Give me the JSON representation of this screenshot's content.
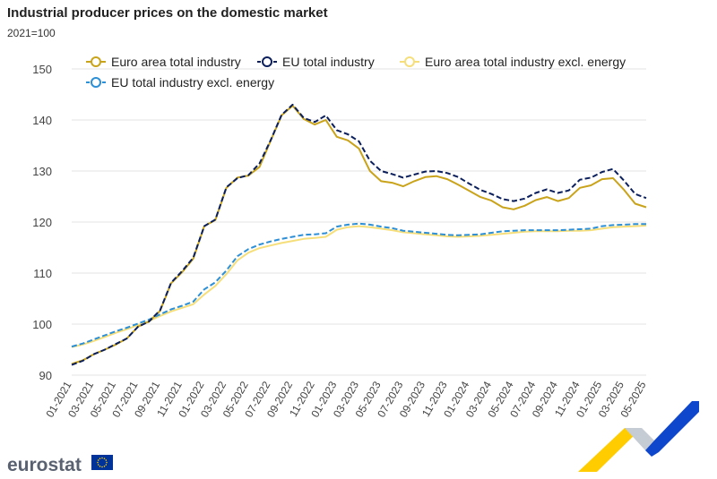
{
  "header": {
    "title": "Industrial producer prices on the domestic market",
    "subtitle": "2021=100"
  },
  "branding": {
    "logo_text": "eurostat",
    "flag_color": "#003399",
    "star_color": "#ffcc00",
    "shape_colors": [
      "#ffcc00",
      "#c6ccd3",
      "#0e47cb"
    ]
  },
  "chart_data": {
    "type": "line",
    "title": "Industrial producer prices on the domestic market",
    "subtitle": "2021=100",
    "xlabel": "",
    "ylabel": "",
    "ylim": [
      90,
      150
    ],
    "yticks": [
      90,
      100,
      110,
      120,
      130,
      140,
      150
    ],
    "grid": true,
    "legend_position": "top",
    "x": [
      "01-2021",
      "02-2021",
      "03-2021",
      "04-2021",
      "05-2021",
      "06-2021",
      "07-2021",
      "08-2021",
      "09-2021",
      "10-2021",
      "11-2021",
      "12-2021",
      "01-2022",
      "02-2022",
      "03-2022",
      "04-2022",
      "05-2022",
      "06-2022",
      "07-2022",
      "08-2022",
      "09-2022",
      "10-2022",
      "11-2022",
      "12-2022",
      "01-2023",
      "02-2023",
      "03-2023",
      "04-2023",
      "05-2023",
      "06-2023",
      "07-2023",
      "08-2023",
      "09-2023",
      "10-2023",
      "11-2023",
      "12-2023",
      "01-2024",
      "02-2024",
      "03-2024",
      "04-2024",
      "05-2024",
      "06-2024",
      "07-2024",
      "08-2024",
      "09-2024",
      "10-2024",
      "11-2024",
      "12-2024",
      "01-2025",
      "02-2025",
      "03-2025",
      "04-2025",
      "05-2025"
    ],
    "xticks": [
      "01-2021",
      "03-2021",
      "05-2021",
      "07-2021",
      "09-2021",
      "11-2021",
      "01-2022",
      "03-2022",
      "05-2022",
      "07-2022",
      "09-2022",
      "11-2022",
      "01-2023",
      "03-2023",
      "05-2023",
      "07-2023",
      "09-2023",
      "11-2023",
      "01-2024",
      "03-2024",
      "05-2024",
      "07-2024",
      "09-2024",
      "11-2024",
      "01-2025",
      "03-2025",
      "05-2025"
    ],
    "series": [
      {
        "name": "Euro area total industry",
        "color": "#c9a31a",
        "dash": "solid",
        "values": [
          92.2,
          92.9,
          94.1,
          95.0,
          96.0,
          97.2,
          99.5,
          100.5,
          102.6,
          108.0,
          110.2,
          112.8,
          119.2,
          120.4,
          126.7,
          128.7,
          129.1,
          130.8,
          135.9,
          140.9,
          142.8,
          140.2,
          139.1,
          140.0,
          136.7,
          136.0,
          134.4,
          130.0,
          128.0,
          127.7,
          127.0,
          128.0,
          128.8,
          129.0,
          128.4,
          127.3,
          126.1,
          124.9,
          124.2,
          122.9,
          122.5,
          123.2,
          124.3,
          124.9,
          124.1,
          124.7,
          126.7,
          127.2,
          128.4,
          128.6,
          126.3,
          123.6,
          122.9
        ]
      },
      {
        "name": "EU total industry",
        "color": "#0b1f5c",
        "dash": "dashed",
        "values": [
          92.0,
          92.8,
          94.1,
          95.0,
          96.1,
          97.2,
          99.5,
          100.5,
          102.7,
          108.1,
          110.4,
          113.0,
          119.2,
          120.5,
          126.8,
          128.6,
          129.2,
          131.5,
          136.0,
          141.0,
          143.0,
          140.4,
          139.6,
          140.9,
          138.0,
          137.2,
          135.8,
          132.0,
          130.0,
          129.4,
          128.7,
          129.3,
          129.9,
          130.0,
          129.6,
          128.8,
          127.5,
          126.3,
          125.5,
          124.5,
          124.1,
          124.6,
          125.7,
          126.4,
          125.7,
          126.2,
          128.3,
          128.7,
          129.8,
          130.4,
          128.1,
          125.5,
          124.7
        ]
      },
      {
        "name": "Euro area total industry excl. energy",
        "color": "#f6df7b",
        "dash": "solid",
        "values": [
          95.5,
          96.0,
          96.7,
          97.5,
          98.3,
          99.0,
          99.8,
          100.6,
          101.6,
          102.5,
          103.2,
          103.9,
          105.8,
          107.5,
          109.8,
          112.5,
          114.0,
          114.9,
          115.4,
          115.9,
          116.3,
          116.7,
          116.9,
          117.1,
          118.5,
          119.0,
          119.2,
          119.0,
          118.7,
          118.4,
          118.0,
          117.8,
          117.6,
          117.4,
          117.2,
          117.1,
          117.2,
          117.3,
          117.5,
          117.7,
          117.9,
          118.1,
          118.2,
          118.2,
          118.2,
          118.3,
          118.3,
          118.4,
          118.7,
          119.0,
          119.1,
          119.2,
          119.3
        ]
      },
      {
        "name": "EU total industry excl. energy",
        "color": "#2d8fd6",
        "dash": "dashed",
        "values": [
          95.6,
          96.2,
          97.0,
          97.8,
          98.6,
          99.3,
          100.1,
          100.9,
          101.9,
          102.9,
          103.6,
          104.4,
          106.8,
          108.2,
          110.5,
          113.3,
          114.7,
          115.6,
          116.2,
          116.7,
          117.1,
          117.5,
          117.6,
          117.8,
          119.1,
          119.5,
          119.7,
          119.5,
          119.1,
          118.8,
          118.3,
          118.1,
          117.9,
          117.7,
          117.5,
          117.4,
          117.5,
          117.6,
          117.9,
          118.2,
          118.3,
          118.4,
          118.4,
          118.4,
          118.4,
          118.5,
          118.6,
          118.7,
          119.2,
          119.4,
          119.5,
          119.6,
          119.6
        ]
      }
    ]
  }
}
